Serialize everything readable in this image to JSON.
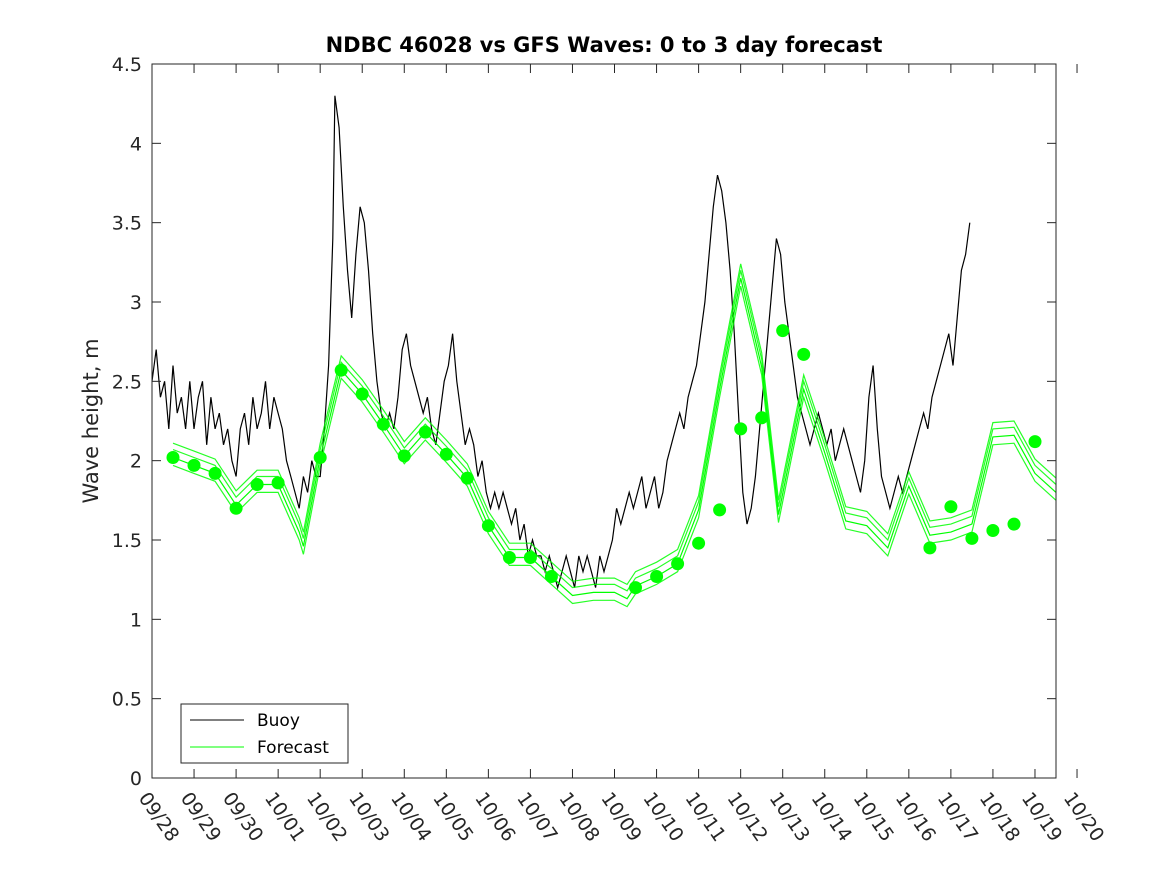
{
  "chart_data": {
    "type": "line",
    "title": "NDBC 46028 vs GFS Waves: 0 to 3 day forecast",
    "xlabel": "",
    "ylabel": "Wave height, m",
    "ylim": [
      0,
      4.5
    ],
    "yticks": [
      0,
      0.5,
      1,
      1.5,
      2,
      2.5,
      3,
      3.5,
      4,
      4.5
    ],
    "xlim_days": [
      0,
      21.5
    ],
    "xtick_labels": [
      "09/28",
      "09/29",
      "09/30",
      "10/01",
      "10/02",
      "10/03",
      "10/04",
      "10/05",
      "10/06",
      "10/07",
      "10/08",
      "10/09",
      "10/10",
      "10/11",
      "10/12",
      "10/13",
      "10/14",
      "10/15",
      "10/16",
      "10/17",
      "10/18",
      "10/19",
      "10/20"
    ],
    "legend": {
      "position": "bottom-left",
      "entries": [
        {
          "name": "Buoy",
          "color": "#000000"
        },
        {
          "name": "Forecast",
          "color": "#00ff00"
        }
      ]
    },
    "series": [
      {
        "name": "Buoy",
        "color": "#000000",
        "points": [
          [
            0,
            2.5
          ],
          [
            0.1,
            2.7
          ],
          [
            0.2,
            2.4
          ],
          [
            0.3,
            2.5
          ],
          [
            0.4,
            2.2
          ],
          [
            0.5,
            2.6
          ],
          [
            0.6,
            2.3
          ],
          [
            0.7,
            2.4
          ],
          [
            0.8,
            2.2
          ],
          [
            0.9,
            2.5
          ],
          [
            1.0,
            2.2
          ],
          [
            1.1,
            2.4
          ],
          [
            1.2,
            2.5
          ],
          [
            1.3,
            2.1
          ],
          [
            1.4,
            2.4
          ],
          [
            1.5,
            2.2
          ],
          [
            1.6,
            2.3
          ],
          [
            1.7,
            2.1
          ],
          [
            1.8,
            2.2
          ],
          [
            1.9,
            2.0
          ],
          [
            2.0,
            1.9
          ],
          [
            2.1,
            2.2
          ],
          [
            2.2,
            2.3
          ],
          [
            2.3,
            2.1
          ],
          [
            2.4,
            2.4
          ],
          [
            2.5,
            2.2
          ],
          [
            2.6,
            2.3
          ],
          [
            2.7,
            2.5
          ],
          [
            2.8,
            2.2
          ],
          [
            2.9,
            2.4
          ],
          [
            3.0,
            2.3
          ],
          [
            3.1,
            2.2
          ],
          [
            3.2,
            2.0
          ],
          [
            3.3,
            1.9
          ],
          [
            3.4,
            1.8
          ],
          [
            3.5,
            1.7
          ],
          [
            3.6,
            1.9
          ],
          [
            3.7,
            1.8
          ],
          [
            3.8,
            2.0
          ],
          [
            3.9,
            1.9
          ],
          [
            4.0,
            1.9
          ],
          [
            4.1,
            2.2
          ],
          [
            4.2,
            2.6
          ],
          [
            4.3,
            3.4
          ],
          [
            4.35,
            4.3
          ],
          [
            4.45,
            4.1
          ],
          [
            4.55,
            3.6
          ],
          [
            4.65,
            3.2
          ],
          [
            4.75,
            2.9
          ],
          [
            4.85,
            3.3
          ],
          [
            4.95,
            3.6
          ],
          [
            5.05,
            3.5
          ],
          [
            5.15,
            3.2
          ],
          [
            5.25,
            2.8
          ],
          [
            5.35,
            2.5
          ],
          [
            5.45,
            2.3
          ],
          [
            5.55,
            2.2
          ],
          [
            5.65,
            2.3
          ],
          [
            5.75,
            2.2
          ],
          [
            5.85,
            2.4
          ],
          [
            5.95,
            2.7
          ],
          [
            6.05,
            2.8
          ],
          [
            6.15,
            2.6
          ],
          [
            6.25,
            2.5
          ],
          [
            6.35,
            2.4
          ],
          [
            6.45,
            2.3
          ],
          [
            6.55,
            2.4
          ],
          [
            6.65,
            2.2
          ],
          [
            6.75,
            2.1
          ],
          [
            6.85,
            2.3
          ],
          [
            6.95,
            2.5
          ],
          [
            7.05,
            2.6
          ],
          [
            7.15,
            2.8
          ],
          [
            7.25,
            2.5
          ],
          [
            7.35,
            2.3
          ],
          [
            7.45,
            2.1
          ],
          [
            7.55,
            2.2
          ],
          [
            7.65,
            2.1
          ],
          [
            7.75,
            1.9
          ],
          [
            7.85,
            2.0
          ],
          [
            7.95,
            1.8
          ],
          [
            8.05,
            1.7
          ],
          [
            8.15,
            1.8
          ],
          [
            8.25,
            1.7
          ],
          [
            8.35,
            1.8
          ],
          [
            8.45,
            1.7
          ],
          [
            8.55,
            1.6
          ],
          [
            8.65,
            1.7
          ],
          [
            8.75,
            1.5
          ],
          [
            8.85,
            1.6
          ],
          [
            8.95,
            1.4
          ],
          [
            9.05,
            1.5
          ],
          [
            9.15,
            1.4
          ],
          [
            9.25,
            1.4
          ],
          [
            9.35,
            1.3
          ],
          [
            9.45,
            1.4
          ],
          [
            9.55,
            1.3
          ],
          [
            9.65,
            1.2
          ],
          [
            9.75,
            1.3
          ],
          [
            9.85,
            1.4
          ],
          [
            9.95,
            1.3
          ],
          [
            10.05,
            1.2
          ],
          [
            10.15,
            1.4
          ],
          [
            10.25,
            1.3
          ],
          [
            10.35,
            1.4
          ],
          [
            10.45,
            1.3
          ],
          [
            10.55,
            1.2
          ],
          [
            10.65,
            1.4
          ],
          [
            10.75,
            1.3
          ],
          [
            10.85,
            1.4
          ],
          [
            10.95,
            1.5
          ],
          [
            11.05,
            1.7
          ],
          [
            11.15,
            1.6
          ],
          [
            11.25,
            1.7
          ],
          [
            11.35,
            1.8
          ],
          [
            11.45,
            1.7
          ],
          [
            11.55,
            1.8
          ],
          [
            11.65,
            1.9
          ],
          [
            11.75,
            1.7
          ],
          [
            11.85,
            1.8
          ],
          [
            11.95,
            1.9
          ],
          [
            12.05,
            1.7
          ],
          [
            12.15,
            1.8
          ],
          [
            12.25,
            2.0
          ],
          [
            12.35,
            2.1
          ],
          [
            12.45,
            2.2
          ],
          [
            12.55,
            2.3
          ],
          [
            12.65,
            2.2
          ],
          [
            12.75,
            2.4
          ],
          [
            12.85,
            2.5
          ],
          [
            12.95,
            2.6
          ],
          [
            13.05,
            2.8
          ],
          [
            13.15,
            3.0
          ],
          [
            13.25,
            3.3
          ],
          [
            13.35,
            3.6
          ],
          [
            13.45,
            3.8
          ],
          [
            13.55,
            3.7
          ],
          [
            13.65,
            3.5
          ],
          [
            13.75,
            3.2
          ],
          [
            13.85,
            2.8
          ],
          [
            13.95,
            2.3
          ],
          [
            14.05,
            1.8
          ],
          [
            14.15,
            1.6
          ],
          [
            14.25,
            1.7
          ],
          [
            14.35,
            1.9
          ],
          [
            14.45,
            2.2
          ],
          [
            14.55,
            2.5
          ],
          [
            14.65,
            2.8
          ],
          [
            14.75,
            3.1
          ],
          [
            14.85,
            3.4
          ],
          [
            14.95,
            3.3
          ],
          [
            15.05,
            3.0
          ],
          [
            15.15,
            2.8
          ],
          [
            15.25,
            2.6
          ],
          [
            15.35,
            2.4
          ],
          [
            15.45,
            2.3
          ],
          [
            15.55,
            2.2
          ],
          [
            15.65,
            2.1
          ],
          [
            15.75,
            2.2
          ],
          [
            15.85,
            2.3
          ],
          [
            15.95,
            2.2
          ],
          [
            16.05,
            2.1
          ],
          [
            16.15,
            2.2
          ],
          [
            16.25,
            2.0
          ],
          [
            16.35,
            2.1
          ],
          [
            16.45,
            2.2
          ],
          [
            16.55,
            2.1
          ],
          [
            16.65,
            2.0
          ],
          [
            16.75,
            1.9
          ],
          [
            16.85,
            1.8
          ],
          [
            16.95,
            2.0
          ],
          [
            17.05,
            2.4
          ],
          [
            17.15,
            2.6
          ],
          [
            17.25,
            2.2
          ],
          [
            17.35,
            1.9
          ],
          [
            17.45,
            1.8
          ],
          [
            17.55,
            1.7
          ],
          [
            17.65,
            1.8
          ],
          [
            17.75,
            1.9
          ],
          [
            17.85,
            1.8
          ],
          [
            17.95,
            1.9
          ],
          [
            18.05,
            2.0
          ],
          [
            18.15,
            2.1
          ],
          [
            18.25,
            2.2
          ],
          [
            18.35,
            2.3
          ],
          [
            18.45,
            2.2
          ],
          [
            18.55,
            2.4
          ],
          [
            18.65,
            2.5
          ],
          [
            18.75,
            2.6
          ],
          [
            18.85,
            2.7
          ],
          [
            18.95,
            2.8
          ],
          [
            19.05,
            2.6
          ],
          [
            19.15,
            2.9
          ],
          [
            19.25,
            3.2
          ],
          [
            19.35,
            3.3
          ],
          [
            19.45,
            3.5
          ]
        ]
      },
      {
        "name": "Forecast",
        "color": "#00ff00",
        "points": [
          [
            0.5,
            2.02
          ],
          [
            1.0,
            1.97
          ],
          [
            1.5,
            1.92
          ],
          [
            2.0,
            1.72
          ],
          [
            2.5,
            1.85
          ],
          [
            3.0,
            1.85
          ],
          [
            3.5,
            1.55
          ],
          [
            3.6,
            1.46
          ],
          [
            4.0,
            2.02
          ],
          [
            4.5,
            2.57
          ],
          [
            5.0,
            2.42
          ],
          [
            5.5,
            2.23
          ],
          [
            6.0,
            2.03
          ],
          [
            6.5,
            2.18
          ],
          [
            7.0,
            2.04
          ],
          [
            7.5,
            1.89
          ],
          [
            8.0,
            1.59
          ],
          [
            8.5,
            1.39
          ],
          [
            9.0,
            1.39
          ],
          [
            9.5,
            1.27
          ],
          [
            10.0,
            1.15
          ],
          [
            10.5,
            1.17
          ],
          [
            11.0,
            1.17
          ],
          [
            11.3,
            1.13
          ],
          [
            11.5,
            1.21
          ],
          [
            12.0,
            1.27
          ],
          [
            12.5,
            1.35
          ],
          [
            13.0,
            1.69
          ],
          [
            13.5,
            2.45
          ],
          [
            14.0,
            3.15
          ],
          [
            14.5,
            2.59
          ],
          [
            14.9,
            1.66
          ],
          [
            15.5,
            2.45
          ],
          [
            16.0,
            2.05
          ],
          [
            16.5,
            1.62
          ],
          [
            17.0,
            1.59
          ],
          [
            17.5,
            1.45
          ],
          [
            18.0,
            1.84
          ],
          [
            18.5,
            1.53
          ],
          [
            19.0,
            1.55
          ],
          [
            19.5,
            1.6
          ],
          [
            20.0,
            2.15
          ],
          [
            20.5,
            2.16
          ],
          [
            21.0,
            1.92
          ],
          [
            21.5,
            1.8
          ]
        ]
      },
      {
        "name": "Forecast (0 day markers)",
        "color": "#00ff00",
        "markers": [
          [
            0.5,
            2.02
          ],
          [
            1.0,
            1.97
          ],
          [
            1.5,
            1.92
          ],
          [
            2.0,
            1.7
          ],
          [
            2.5,
            1.85
          ],
          [
            3.0,
            1.86
          ],
          [
            4.0,
            2.02
          ],
          [
            4.5,
            2.57
          ],
          [
            5.0,
            2.42
          ],
          [
            5.5,
            2.23
          ],
          [
            6.0,
            2.03
          ],
          [
            6.5,
            2.18
          ],
          [
            7.0,
            2.04
          ],
          [
            7.5,
            1.89
          ],
          [
            8.0,
            1.59
          ],
          [
            8.5,
            1.39
          ],
          [
            9.0,
            1.39
          ],
          [
            9.5,
            1.27
          ],
          [
            11.5,
            1.2
          ],
          [
            12.0,
            1.27
          ],
          [
            12.5,
            1.35
          ],
          [
            13.0,
            1.48
          ],
          [
            13.5,
            1.69
          ],
          [
            14.0,
            2.2
          ],
          [
            14.5,
            2.27
          ],
          [
            15.0,
            2.82
          ],
          [
            15.5,
            2.67
          ],
          [
            18.5,
            1.45
          ],
          [
            19.0,
            1.71
          ],
          [
            19.5,
            1.51
          ],
          [
            20.0,
            1.56
          ],
          [
            20.5,
            1.6
          ],
          [
            21.0,
            2.12
          ]
        ]
      }
    ]
  }
}
